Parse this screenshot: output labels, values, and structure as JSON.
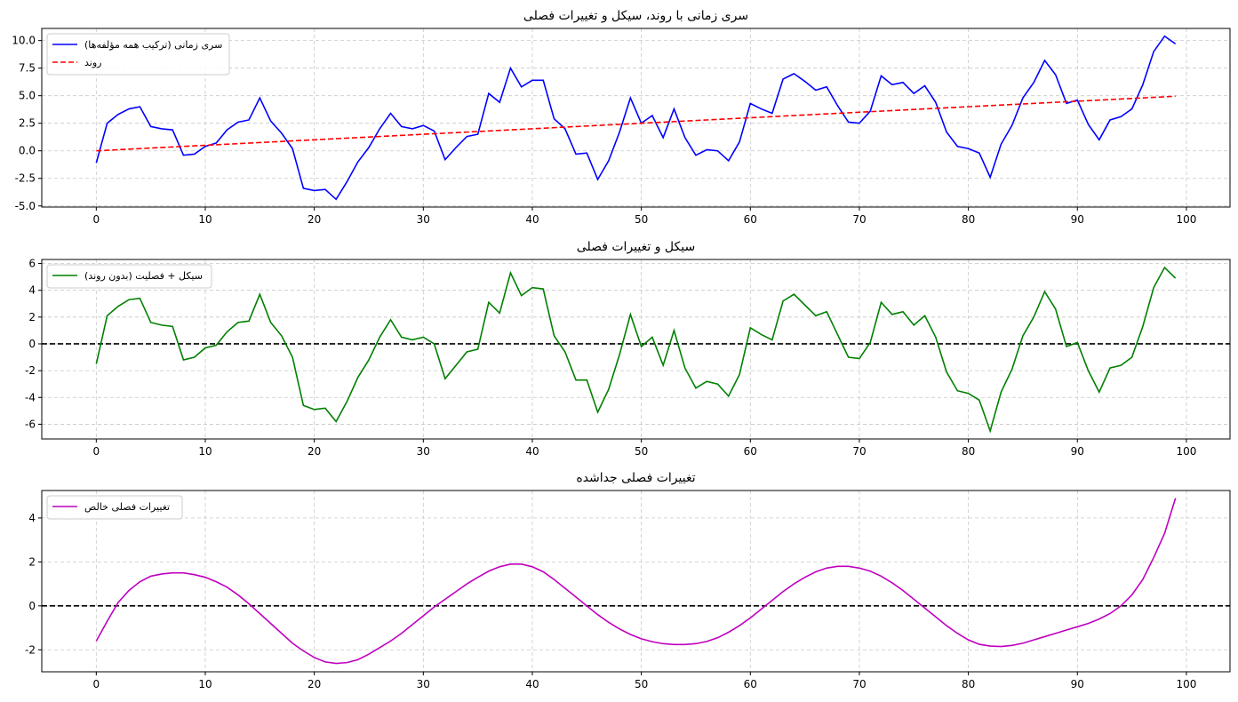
{
  "chart_data": [
    {
      "type": "line",
      "title": "سری زمانی با روند، سیکل و تغییرات فصلی",
      "xlabel": "",
      "ylabel": "",
      "xlim": [
        -5,
        104
      ],
      "ylim": [
        -5.1,
        11.1
      ],
      "xticks": [
        0,
        10,
        20,
        30,
        40,
        50,
        60,
        70,
        80,
        90,
        100
      ],
      "xtick_labels": [
        "0",
        "10",
        "20",
        "30",
        "40",
        "50",
        "60",
        "70",
        "80",
        "90",
        "100"
      ],
      "yticks": [
        -5,
        -2.5,
        0,
        2.5,
        5,
        7.5,
        10
      ],
      "ytick_labels": [
        "-5.0",
        "-2.5",
        "0.0",
        "2.5",
        "5.0",
        "7.5",
        "10.0"
      ],
      "grid": true,
      "legend_position": "top-left",
      "series": [
        {
          "name": "سری زمانی (ترکیب همه مؤلفه‌ها)",
          "color": "#0000ff",
          "dash": "solid",
          "x": [
            0,
            1,
            2,
            3,
            4,
            5,
            6,
            7,
            8,
            9,
            10,
            11,
            12,
            13,
            14,
            15,
            16,
            17,
            18,
            19,
            20,
            21,
            22,
            23,
            24,
            25,
            26,
            27,
            28,
            29,
            30,
            31,
            32,
            33,
            34,
            35,
            36,
            37,
            38,
            39,
            40,
            41,
            42,
            43,
            44,
            45,
            46,
            47,
            48,
            49,
            50,
            51,
            52,
            53,
            54,
            55,
            56,
            57,
            58,
            59,
            60,
            61,
            62,
            63,
            64,
            65,
            66,
            67,
            68,
            69,
            70,
            71,
            72,
            73,
            74,
            75,
            76,
            77,
            78,
            79,
            80,
            81,
            82,
            83,
            84,
            85,
            86,
            87,
            88,
            89,
            90,
            91,
            92,
            93,
            94,
            95,
            96,
            97,
            98,
            99
          ],
          "y": [
            -1.1,
            2.5,
            3.3,
            3.8,
            4.0,
            2.2,
            2.0,
            1.9,
            -0.4,
            -0.3,
            0.4,
            0.7,
            1.9,
            2.6,
            2.8,
            4.8,
            2.7,
            1.6,
            0.2,
            -3.4,
            -3.6,
            -3.5,
            -4.4,
            -2.8,
            -1.0,
            0.3,
            2.0,
            3.4,
            2.2,
            2.0,
            2.3,
            1.8,
            -0.8,
            0.3,
            1.3,
            1.5,
            5.2,
            4.4,
            7.5,
            5.8,
            6.4,
            6.4,
            2.9,
            2.0,
            -0.3,
            -0.2,
            -2.6,
            -0.9,
            1.7,
            4.8,
            2.5,
            3.2,
            1.2,
            3.8,
            1.2,
            -0.4,
            0.1,
            0.0,
            -0.9,
            0.8,
            4.3,
            3.8,
            3.4,
            6.5,
            7.0,
            6.3,
            5.5,
            5.8,
            4.1,
            2.6,
            2.5,
            3.6,
            6.8,
            6.0,
            6.2,
            5.2,
            5.9,
            4.4,
            1.7,
            0.4,
            0.2,
            -0.2,
            -2.4,
            0.6,
            2.3,
            4.8,
            6.2,
            8.2,
            6.9,
            4.3,
            4.6,
            2.4,
            1.0,
            2.8,
            3.1,
            3.8,
            6.0,
            9.0,
            10.4,
            9.7
          ]
        },
        {
          "name": "روند",
          "color": "#ff0000",
          "dash": "dashed",
          "x": [
            0,
            99
          ],
          "y": [
            0.0,
            4.95
          ]
        }
      ]
    },
    {
      "type": "line",
      "title": "سیکل و تغییرات فصلی",
      "xlabel": "",
      "ylabel": "",
      "xlim": [
        -5,
        104
      ],
      "ylim": [
        -7.1,
        6.3
      ],
      "xticks": [
        0,
        10,
        20,
        30,
        40,
        50,
        60,
        70,
        80,
        90,
        100
      ],
      "xtick_labels": [
        "0",
        "10",
        "20",
        "30",
        "40",
        "50",
        "60",
        "70",
        "80",
        "90",
        "100"
      ],
      "yticks": [
        -6,
        -4,
        -2,
        0,
        2,
        4,
        6
      ],
      "ytick_labels": [
        "-6",
        "-4",
        "-2",
        "0",
        "2",
        "4",
        "6"
      ],
      "grid": true,
      "legend_position": "top-left",
      "zero_line": true,
      "series": [
        {
          "name": "سیکل + فصلیت (بدون روند)",
          "color": "#008000",
          "dash": "solid",
          "x": [
            0,
            1,
            2,
            3,
            4,
            5,
            6,
            7,
            8,
            9,
            10,
            11,
            12,
            13,
            14,
            15,
            16,
            17,
            18,
            19,
            20,
            21,
            22,
            23,
            24,
            25,
            26,
            27,
            28,
            29,
            30,
            31,
            32,
            33,
            34,
            35,
            36,
            37,
            38,
            39,
            40,
            41,
            42,
            43,
            44,
            45,
            46,
            47,
            48,
            49,
            50,
            51,
            52,
            53,
            54,
            55,
            56,
            57,
            58,
            59,
            60,
            61,
            62,
            63,
            64,
            65,
            66,
            67,
            68,
            69,
            70,
            71,
            72,
            73,
            74,
            75,
            76,
            77,
            78,
            79,
            80,
            81,
            82,
            83,
            84,
            85,
            86,
            87,
            88,
            89,
            90,
            91,
            92,
            93,
            94,
            95,
            96,
            97,
            98,
            99
          ],
          "y": [
            -1.5,
            2.1,
            2.8,
            3.3,
            3.4,
            1.6,
            1.4,
            1.3,
            -1.2,
            -1.0,
            -0.3,
            -0.1,
            0.9,
            1.6,
            1.7,
            3.7,
            1.6,
            0.6,
            -1.0,
            -4.6,
            -4.9,
            -4.8,
            -5.8,
            -4.3,
            -2.5,
            -1.2,
            0.5,
            1.8,
            0.5,
            0.3,
            0.5,
            0.0,
            -2.6,
            -1.6,
            -0.6,
            -0.4,
            3.1,
            2.3,
            5.3,
            3.6,
            4.2,
            4.1,
            0.6,
            -0.6,
            -2.7,
            -2.7,
            -5.1,
            -3.4,
            -0.8,
            2.2,
            -0.2,
            0.5,
            -1.6,
            1.0,
            -1.8,
            -3.3,
            -2.8,
            -3.0,
            -3.9,
            -2.3,
            1.2,
            0.7,
            0.3,
            3.2,
            3.7,
            2.9,
            2.1,
            2.4,
            0.7,
            -1.0,
            -1.1,
            0.1,
            3.1,
            2.2,
            2.4,
            1.4,
            2.1,
            0.5,
            -2.1,
            -3.5,
            -3.7,
            -4.2,
            -6.5,
            -3.6,
            -1.9,
            0.6,
            2.0,
            3.9,
            2.6,
            -0.2,
            0.1,
            -2.0,
            -3.6,
            -1.8,
            -1.6,
            -1.0,
            1.3,
            4.2,
            5.7,
            4.9
          ]
        }
      ]
    },
    {
      "type": "line",
      "title": "تغییرات فصلی جداشده",
      "xlabel": "",
      "ylabel": "",
      "xlim": [
        -5,
        104
      ],
      "ylim": [
        -3.0,
        5.25
      ],
      "xticks": [
        0,
        10,
        20,
        30,
        40,
        50,
        60,
        70,
        80,
        90,
        100
      ],
      "xtick_labels": [
        "0",
        "10",
        "20",
        "30",
        "40",
        "50",
        "60",
        "70",
        "80",
        "90",
        "100"
      ],
      "yticks": [
        -2,
        0,
        2,
        4
      ],
      "ytick_labels": [
        "-2",
        "0",
        "2",
        "4"
      ],
      "grid": true,
      "legend_position": "top-left",
      "zero_line": true,
      "series": [
        {
          "name": "تغییرات فصلی خالص",
          "color": "#bf00bf",
          "dash": "solid",
          "x": [
            0,
            1,
            2,
            3,
            4,
            5,
            6,
            7,
            8,
            9,
            10,
            11,
            12,
            13,
            14,
            15,
            16,
            17,
            18,
            19,
            20,
            21,
            22,
            23,
            24,
            25,
            26,
            27,
            28,
            29,
            30,
            31,
            32,
            33,
            34,
            35,
            36,
            37,
            38,
            39,
            40,
            41,
            42,
            43,
            44,
            45,
            46,
            47,
            48,
            49,
            50,
            51,
            52,
            53,
            54,
            55,
            56,
            57,
            58,
            59,
            60,
            61,
            62,
            63,
            64,
            65,
            66,
            67,
            68,
            69,
            70,
            71,
            72,
            73,
            74,
            75,
            76,
            77,
            78,
            79,
            80,
            81,
            82,
            83,
            84,
            85,
            86,
            87,
            88,
            89,
            90,
            91,
            92,
            93,
            94,
            95,
            96,
            97,
            98,
            99
          ],
          "y": [
            -1.6,
            -0.7,
            0.15,
            0.7,
            1.1,
            1.35,
            1.45,
            1.5,
            1.5,
            1.42,
            1.3,
            1.1,
            0.85,
            0.5,
            0.1,
            -0.35,
            -0.8,
            -1.25,
            -1.7,
            -2.05,
            -2.35,
            -2.55,
            -2.62,
            -2.58,
            -2.45,
            -2.2,
            -1.9,
            -1.6,
            -1.25,
            -0.85,
            -0.45,
            -0.05,
            0.3,
            0.65,
            1.0,
            1.3,
            1.58,
            1.78,
            1.9,
            1.9,
            1.78,
            1.55,
            1.2,
            0.8,
            0.4,
            0.0,
            -0.4,
            -0.75,
            -1.05,
            -1.3,
            -1.5,
            -1.63,
            -1.72,
            -1.76,
            -1.76,
            -1.72,
            -1.62,
            -1.45,
            -1.2,
            -0.9,
            -0.55,
            -0.15,
            0.25,
            0.65,
            1.0,
            1.3,
            1.55,
            1.72,
            1.8,
            1.8,
            1.72,
            1.58,
            1.35,
            1.05,
            0.7,
            0.3,
            -0.1,
            -0.5,
            -0.9,
            -1.25,
            -1.55,
            -1.75,
            -1.83,
            -1.85,
            -1.8,
            -1.7,
            -1.55,
            -1.4,
            -1.25,
            -1.1,
            -0.95,
            -0.8,
            -0.6,
            -0.35,
            0.0,
            0.5,
            1.2,
            2.2,
            3.3,
            4.9
          ]
        }
      ]
    }
  ]
}
